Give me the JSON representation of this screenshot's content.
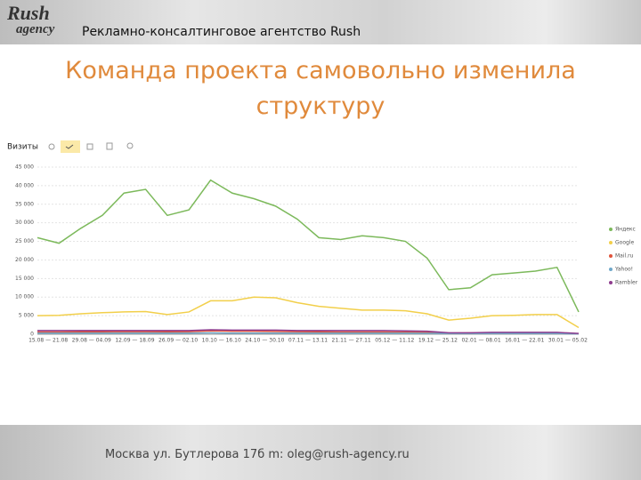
{
  "header": {
    "logo": [
      "Rush",
      "agency"
    ],
    "text": "Рекламно-консалтинговое агентство Rush"
  },
  "title": "Команда проекта самовольно изменила структуру",
  "footer": "Москва ул. Бутлерова 17б  m: oleg@rush-agency.ru",
  "chart_data": {
    "type": "line",
    "subtitle": "Визиты",
    "categories": [
      "15.08 — 21.08",
      null,
      "29.08 — 04.09",
      null,
      "12.09 — 18.09",
      null,
      "26.09 — 02.10",
      null,
      "10.10 — 16.10",
      null,
      "24.10 — 30.10",
      null,
      "07.11 — 13.11",
      null,
      "21.11 — 27.11",
      null,
      "05.12 — 11.12",
      null,
      "19.12 — 25.12",
      null,
      "02.01 — 08.01",
      null,
      "16.01 — 22.01",
      null,
      "30.01 — 05.02",
      null
    ],
    "series": [
      {
        "name": "Яндекс",
        "color": "#7cb95b",
        "values": [
          26000,
          24500,
          28500,
          32000,
          38000,
          39000,
          32000,
          33500,
          41500,
          38000,
          36500,
          34500,
          31000,
          26000,
          25500,
          26500,
          26000,
          25000,
          20500,
          12000,
          12500,
          16000,
          16500,
          17000,
          18000,
          6000
        ]
      },
      {
        "name": "Google",
        "color": "#f2cf4a",
        "values": [
          5000,
          5100,
          5500,
          5800,
          6000,
          6100,
          5300,
          6000,
          9000,
          9000,
          10000,
          9800,
          8500,
          7500,
          7000,
          6500,
          6500,
          6300,
          5500,
          3800,
          4300,
          5000,
          5100,
          5300,
          5300,
          1800
        ]
      },
      {
        "name": "Mail.ru",
        "color": "#e0533b",
        "values": [
          600,
          600,
          650,
          650,
          700,
          700,
          650,
          700,
          900,
          800,
          800,
          750,
          700,
          650,
          600,
          600,
          600,
          550,
          500,
          300,
          350,
          400,
          400,
          400,
          400,
          150
        ]
      },
      {
        "name": "Yahoo!",
        "color": "#6fa8c9",
        "values": [
          300,
          300,
          300,
          300,
          300,
          300,
          300,
          300,
          350,
          300,
          300,
          300,
          300,
          300,
          300,
          300,
          300,
          300,
          250,
          200,
          200,
          200,
          200,
          200,
          200,
          100
        ]
      },
      {
        "name": "Rambler",
        "color": "#8e3c8e",
        "values": [
          1000,
          1000,
          1000,
          1000,
          1000,
          1000,
          1000,
          1000,
          1200,
          1100,
          1100,
          1100,
          1000,
          1000,
          1000,
          1000,
          1000,
          900,
          800,
          400,
          400,
          500,
          500,
          500,
          500,
          200
        ]
      }
    ],
    "ylim": [
      0,
      45000
    ],
    "yticks": [
      0,
      {
        "value": 5000,
        "label": "5 000"
      },
      {
        "value": 10000,
        "label": "10 000"
      },
      {
        "value": 15000,
        "label": "15 000"
      },
      {
        "value": 20000,
        "label": "20 000"
      },
      {
        "value": 25000,
        "label": "25 000"
      },
      {
        "value": 30000,
        "label": "30 000"
      },
      {
        "value": 35000,
        "label": "35 000"
      },
      {
        "value": 40000,
        "label": "40 000"
      },
      {
        "value": 45000,
        "label": "45 000"
      }
    ],
    "grid": true,
    "legend": "right"
  }
}
